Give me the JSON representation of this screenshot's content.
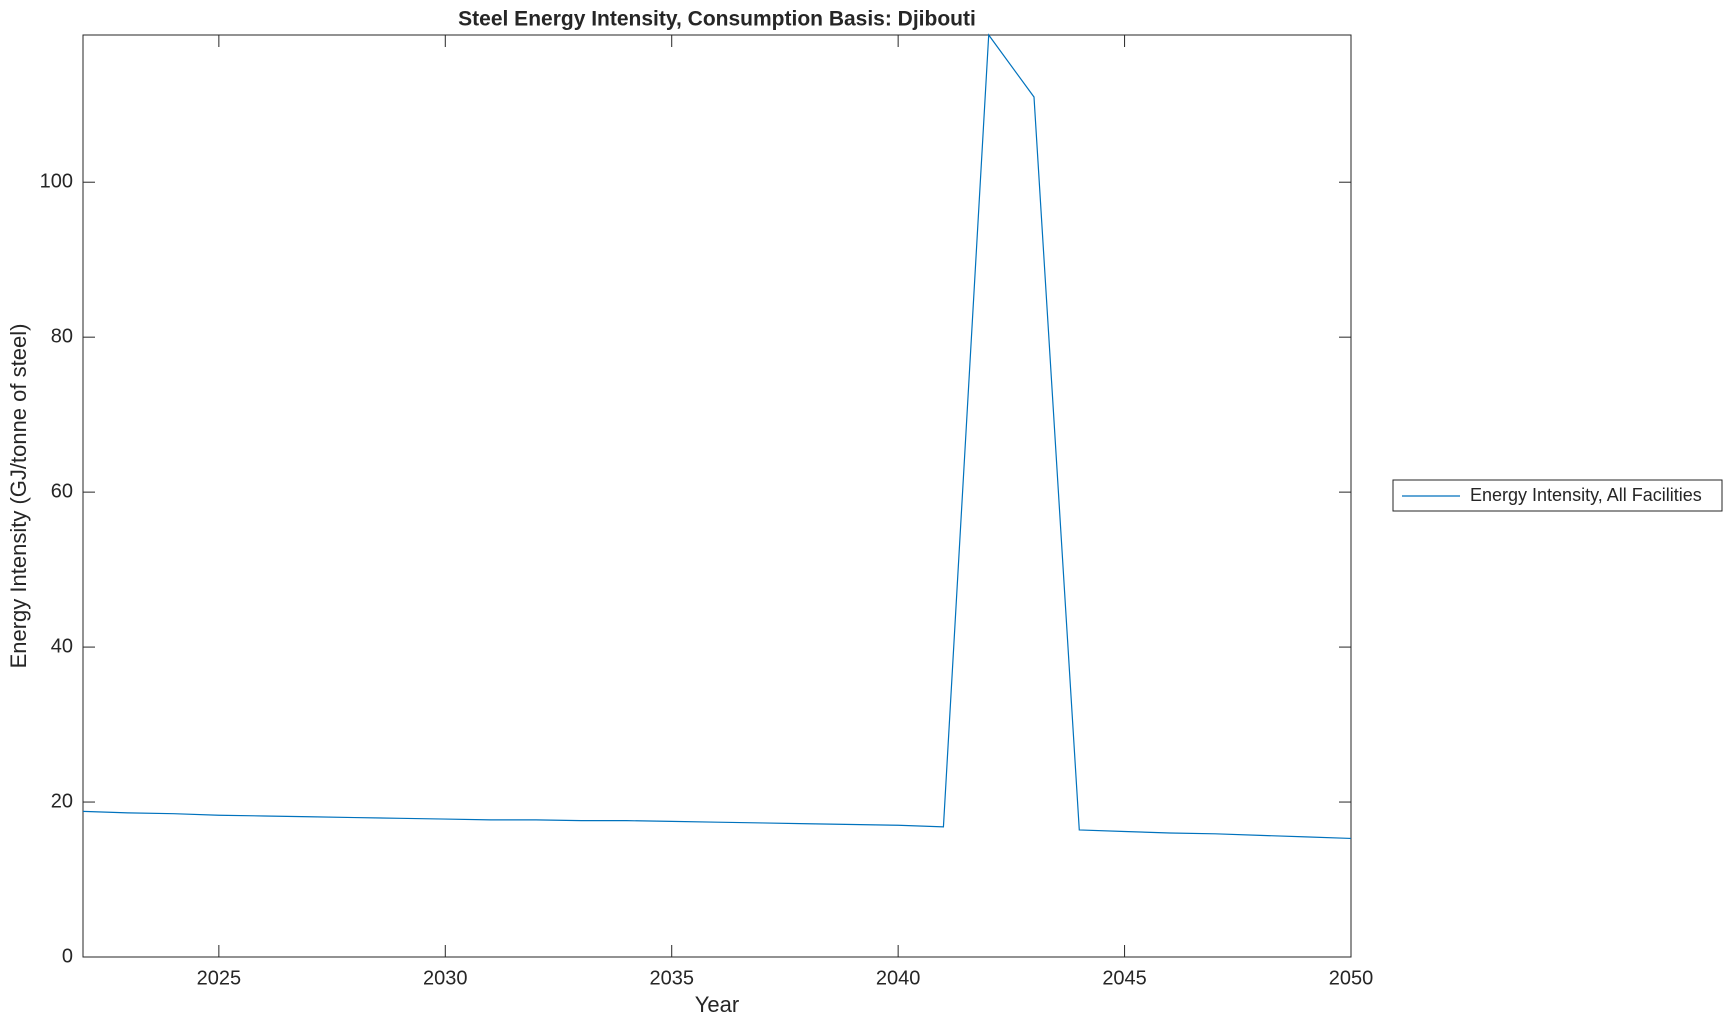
{
  "chart_data": {
    "type": "line",
    "title": "Steel Energy Intensity, Consumption Basis: Djibouti",
    "x_label": "Year",
    "y_label": "Energy Intensity (GJ/tonne of steel)",
    "x": [
      2022,
      2023,
      2024,
      2025,
      2026,
      2027,
      2028,
      2029,
      2030,
      2031,
      2032,
      2033,
      2034,
      2035,
      2036,
      2037,
      2038,
      2039,
      2040,
      2041,
      2042,
      2043,
      2044,
      2045,
      2046,
      2047,
      2048,
      2049,
      2050
    ],
    "series": [
      {
        "name": "Energy Intensity, All Facilities",
        "color": "#0072bd",
        "values": [
          18.8,
          18.6,
          18.5,
          18.3,
          18.2,
          18.1,
          18.0,
          17.9,
          17.8,
          17.7,
          17.7,
          17.6,
          17.6,
          17.5,
          17.4,
          17.3,
          17.2,
          17.1,
          17.0,
          16.8,
          119,
          111,
          16.4,
          16.2,
          16.0,
          15.9,
          15.7,
          15.5,
          15.3
        ]
      }
    ],
    "xlim": [
      2022,
      2050
    ],
    "xticks": [
      2025,
      2030,
      2035,
      2040,
      2045,
      2050
    ],
    "ylim": [
      0,
      119
    ],
    "yticks": [
      0,
      20,
      40,
      60,
      80,
      100
    ],
    "grid": false,
    "legend": "outside right"
  }
}
